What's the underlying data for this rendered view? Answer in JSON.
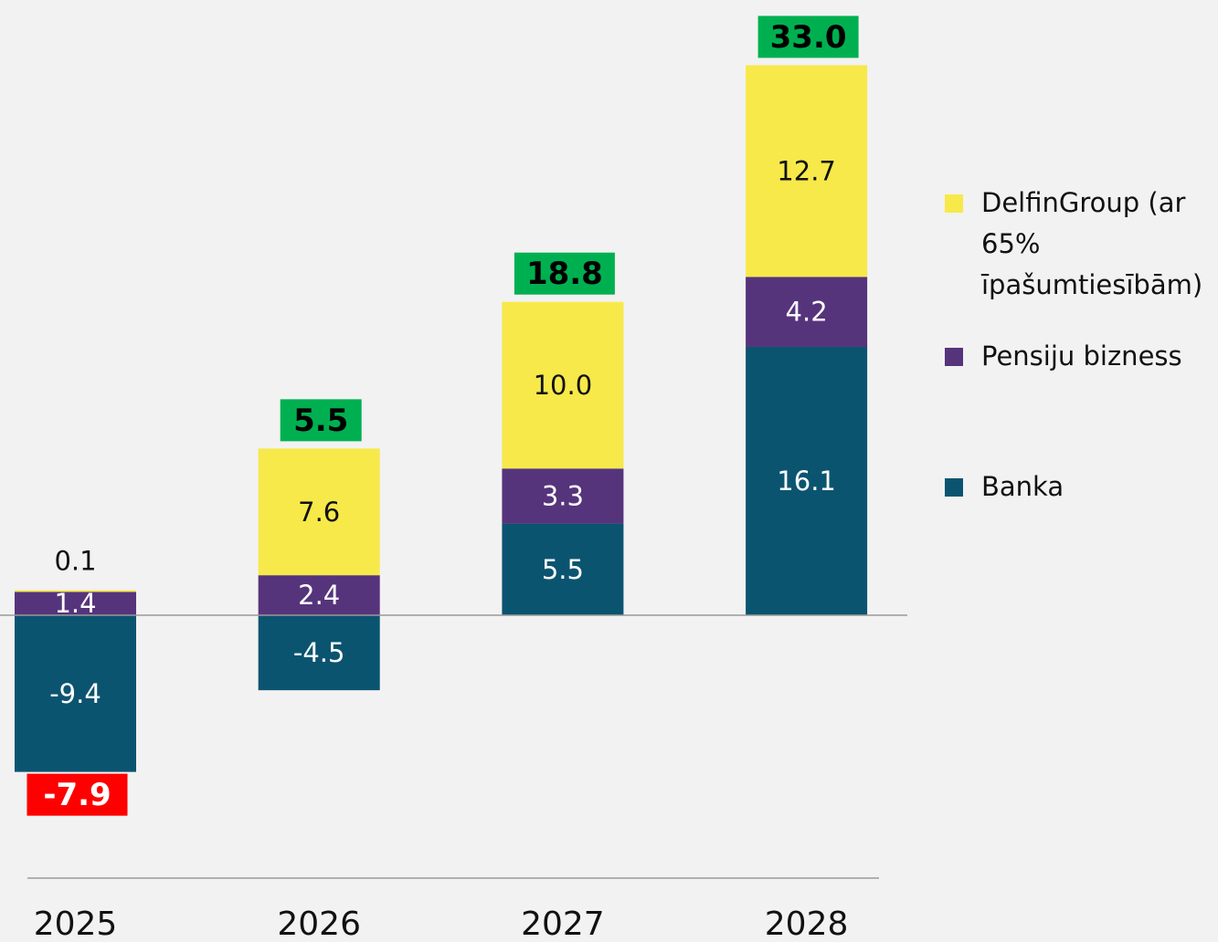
{
  "chart_data": {
    "type": "stacked_bar",
    "categories": [
      "2025",
      "2026",
      "2027",
      "2028"
    ],
    "series": [
      {
        "name": "Banka",
        "color": "#0b5470",
        "values": [
          -9.4,
          -4.5,
          5.5,
          16.1
        ]
      },
      {
        "name": "Pensiju bizness",
        "color": "#56347c",
        "values": [
          1.4,
          2.4,
          3.3,
          4.2
        ]
      },
      {
        "name": "DelfinGroup (ar 65% īpašumtiesībām)",
        "color": "#f7e94a",
        "values": [
          0.1,
          7.6,
          10.0,
          12.7
        ],
        "value_labels": [
          "0.1",
          "7.6",
          "10.0",
          "12.7"
        ]
      }
    ],
    "totals": {
      "values": [
        -7.9,
        5.5,
        18.8,
        33.0
      ],
      "value_labels": [
        "-7.9",
        "5.5",
        "18.8",
        "33.0"
      ],
      "positive_color": "#00b050",
      "negative_color": "#ff0000"
    }
  }
}
